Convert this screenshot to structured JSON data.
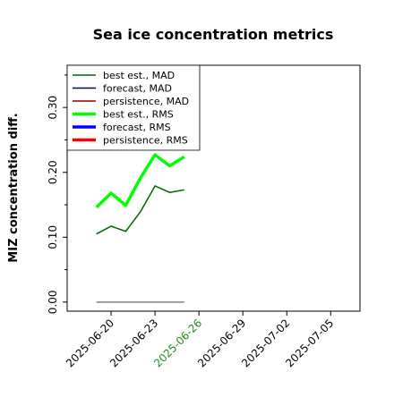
{
  "chart_data": {
    "type": "line",
    "title": "Sea ice concentration metrics",
    "y_label": "MIZ concentration diff.",
    "x": [
      "2025-06-19",
      "2025-06-20",
      "2025-06-21",
      "2025-06-22",
      "2025-06-23",
      "2025-06-24",
      "2025-06-25"
    ],
    "series": [
      {
        "name": "best est., MAD",
        "color": "#006400",
        "width": 1.5,
        "values": [
          0.105,
          0.117,
          0.109,
          0.139,
          0.179,
          0.169,
          0.173
        ]
      },
      {
        "name": "forecast,  MAD",
        "color": "#000080",
        "width": 1.5,
        "values": [
          null,
          null,
          null,
          null,
          null,
          null,
          null
        ]
      },
      {
        "name": "persistence, MAD",
        "color": "#8b0000",
        "width": 1.5,
        "values": [
          null,
          null,
          null,
          null,
          null,
          null,
          null
        ]
      },
      {
        "name": "best est., RMS",
        "color": "#00ff00",
        "width": 3.5,
        "values": [
          0.146,
          0.168,
          0.149,
          0.191,
          0.227,
          0.21,
          0.224
        ]
      },
      {
        "name": "forecast,  RMS",
        "color": "#0000ff",
        "width": 3.5,
        "values": [
          null,
          null,
          null,
          null,
          null,
          null,
          null
        ]
      },
      {
        "name": "persistence, RMS",
        "color": "#ff0000",
        "width": 3.5,
        "values": [
          null,
          null,
          null,
          null,
          null,
          null,
          null
        ]
      }
    ],
    "baseline": {
      "color": "#808080",
      "values": [
        0,
        0,
        0,
        0,
        0,
        0,
        0
      ]
    },
    "xlim": [
      "2025-06-17",
      "2025-07-07"
    ],
    "xticks": [
      "2025-06-20",
      "2025-06-23",
      "2025-06-26",
      "2025-06-29",
      "2025-07-02",
      "2025-07-05"
    ],
    "highlighted_xtick": {
      "index": 2,
      "color": "#228b22"
    },
    "ylim": [
      -0.014,
      0.365
    ],
    "yticks": [
      {
        "value": 0,
        "label": "0.00"
      },
      {
        "value": 0.1,
        "label": "0.10"
      },
      {
        "value": 0.2,
        "label": "0.20"
      },
      {
        "value": 0.3,
        "label": "0.30"
      }
    ],
    "yminorticks": [
      0.05,
      0.15,
      0.25,
      0.35
    ],
    "legend": "upper left",
    "grid": false
  }
}
